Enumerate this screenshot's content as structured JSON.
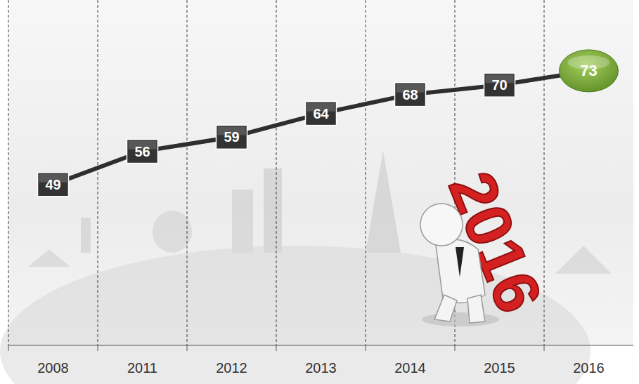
{
  "chart_data": {
    "type": "line",
    "categories": [
      "2008",
      "2011",
      "2012",
      "2013",
      "2014",
      "2015",
      "2016"
    ],
    "values": [
      49,
      56,
      59,
      64,
      68,
      70,
      73
    ],
    "color": "#2e2e2e",
    "colors": [
      "#333333",
      "#333333",
      "#333333",
      "#333333",
      "#333333",
      "#333333",
      "#78a73a"
    ],
    "ylim": [
      15,
      85
    ],
    "tick_labels": "x",
    "data_labels": true,
    "grid": true,
    "annotation": "2016"
  }
}
